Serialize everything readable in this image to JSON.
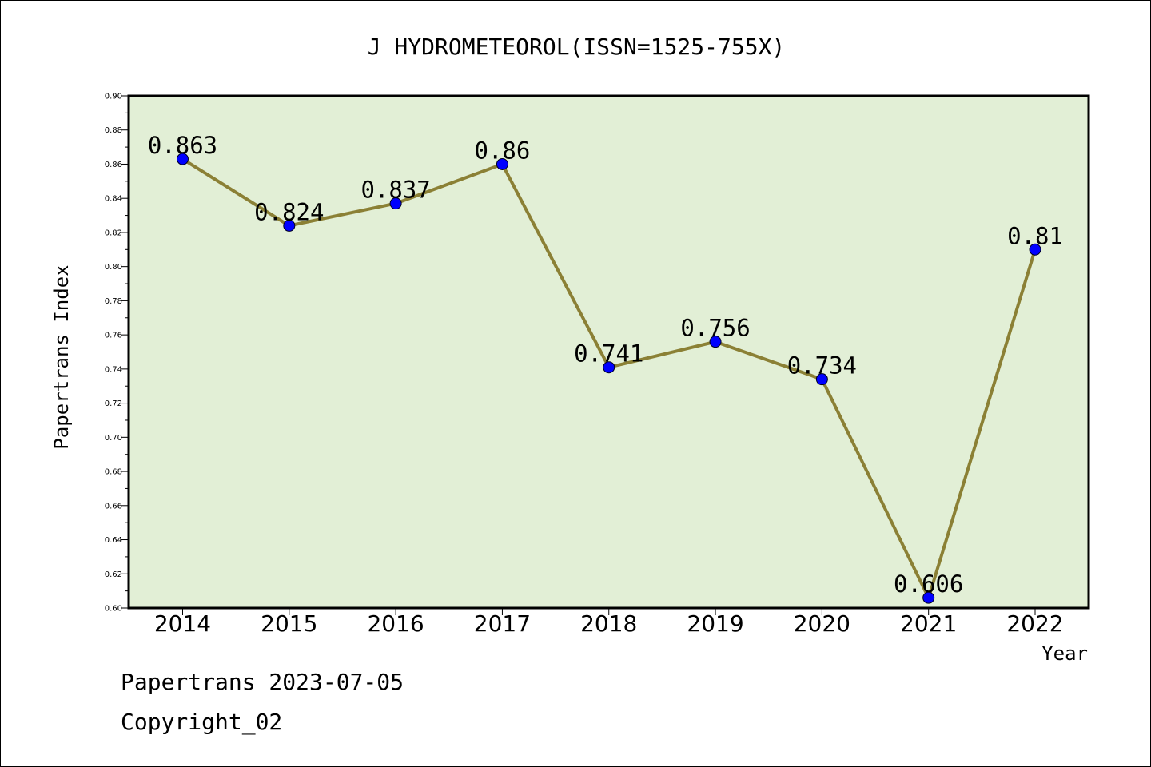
{
  "chart_data": {
    "type": "line",
    "title": "J HYDROMETEOROL(ISSN=1525-755X)",
    "xlabel": "Year",
    "ylabel": "Papertrans Index",
    "categories": [
      "2014",
      "2015",
      "2016",
      "2017",
      "2018",
      "2019",
      "2020",
      "2021",
      "2022"
    ],
    "series": [
      {
        "values": [
          0.863,
          0.824,
          0.837,
          0.86,
          0.741,
          0.756,
          0.734,
          0.606,
          0.81
        ],
        "labels": [
          "0.863",
          "0.824",
          "0.837",
          "0.86",
          "0.741",
          "0.756",
          "0.734",
          "0.606",
          "0.81"
        ],
        "line_color": "#8b8035",
        "marker_color": "#0000ff"
      }
    ],
    "ylim": [
      0.6,
      0.9
    ],
    "yticks": [
      "0.60",
      "0.62",
      "0.64",
      "0.66",
      "0.68",
      "0.70",
      "0.72",
      "0.74",
      "0.76",
      "0.78",
      "0.80",
      "0.82",
      "0.84",
      "0.86",
      "0.88",
      "0.90"
    ],
    "grid": false,
    "plot_background": "#e2efd6"
  },
  "footer": {
    "line1": "Papertrans 2023-07-05",
    "line2": "Copyright_02"
  }
}
